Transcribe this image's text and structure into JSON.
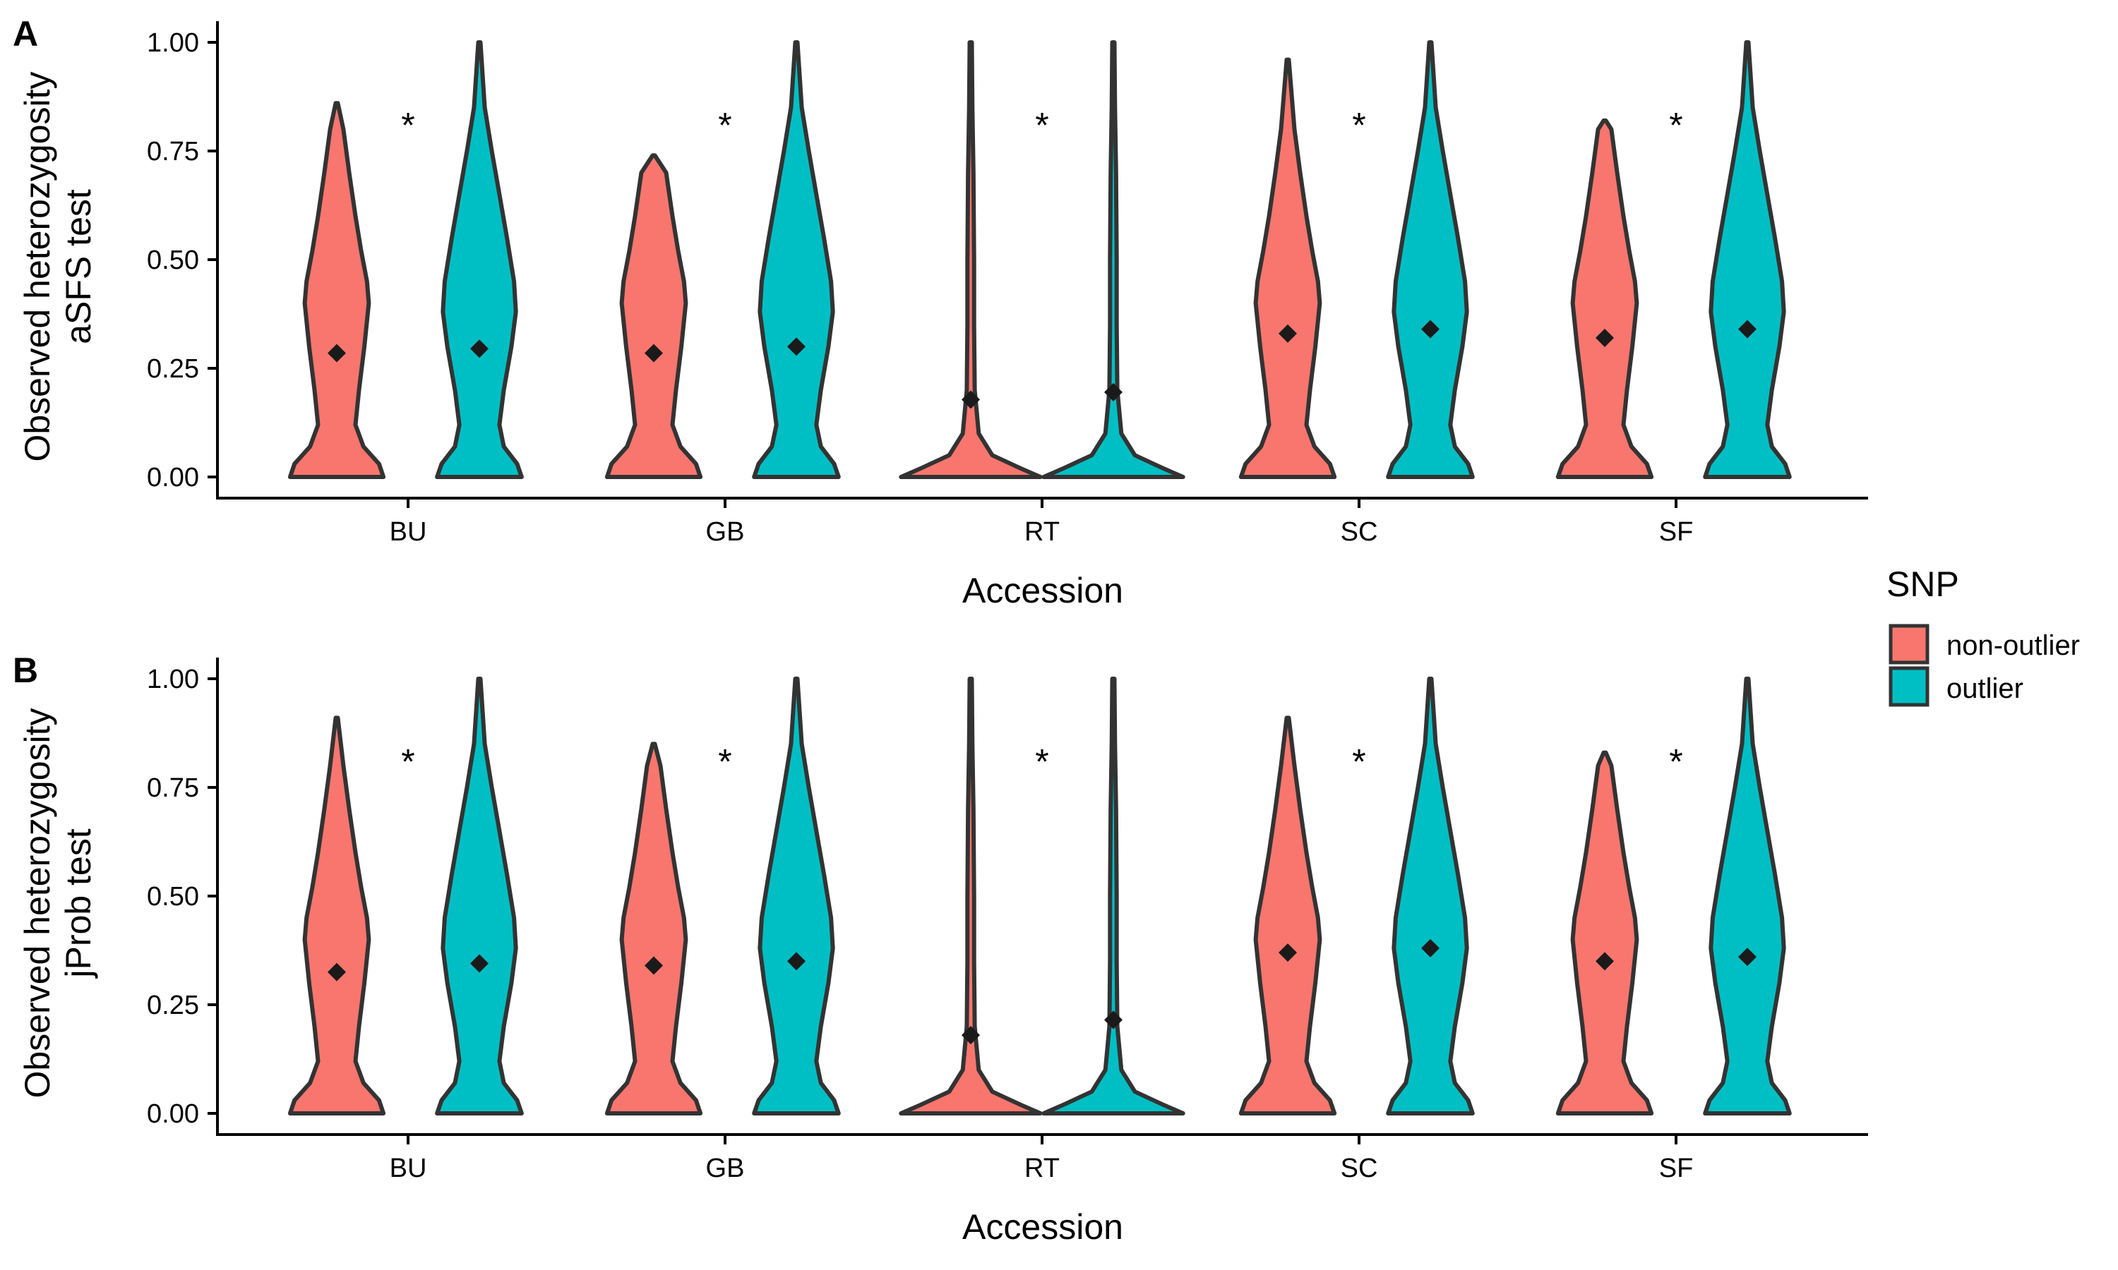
{
  "legend": {
    "title": "SNP",
    "items": [
      {
        "label": "non-outlier",
        "color": "#F8766D"
      },
      {
        "label": "outlier",
        "color": "#00BFC4"
      }
    ]
  },
  "chart_data": [
    {
      "type": "violin",
      "panel_tag": "A",
      "xlabel": "Accession",
      "ylabel_lines": [
        "Observed heterozygosity",
        "aSFS test"
      ],
      "ylim": [
        0,
        1
      ],
      "yticks": [
        0.0,
        0.25,
        0.5,
        0.75,
        1.0
      ],
      "ytick_labels": [
        "0.00",
        "0.25",
        "0.50",
        "0.75",
        "1.00"
      ],
      "categories": [
        "BU",
        "GB",
        "RT",
        "SC",
        "SF"
      ],
      "significance_marker": "*",
      "significance_y": 0.83,
      "series": [
        {
          "name": "non-outlier",
          "color": "#F8766D",
          "means": [
            0.285,
            0.285,
            0.178,
            0.33,
            0.32
          ],
          "max": [
            0.86,
            0.74,
            1.0,
            0.96,
            0.82
          ]
        },
        {
          "name": "outlier",
          "color": "#00BFC4",
          "means": [
            0.295,
            0.3,
            0.195,
            0.34,
            0.34
          ],
          "max": [
            1.0,
            1.0,
            1.0,
            1.0,
            1.0
          ]
        }
      ]
    },
    {
      "type": "violin",
      "panel_tag": "B",
      "xlabel": "Accession",
      "ylabel_lines": [
        "Observed heterozygosity",
        "jProb test"
      ],
      "ylim": [
        0,
        1
      ],
      "yticks": [
        0.0,
        0.25,
        0.5,
        0.75,
        1.0
      ],
      "ytick_labels": [
        "0.00",
        "0.25",
        "0.50",
        "0.75",
        "1.00"
      ],
      "categories": [
        "BU",
        "GB",
        "RT",
        "SC",
        "SF"
      ],
      "significance_marker": "*",
      "significance_y": 0.83,
      "series": [
        {
          "name": "non-outlier",
          "color": "#F8766D",
          "means": [
            0.325,
            0.34,
            0.18,
            0.37,
            0.35
          ],
          "max": [
            0.91,
            0.85,
            1.0,
            0.91,
            0.83
          ]
        },
        {
          "name": "outlier",
          "color": "#00BFC4",
          "means": [
            0.345,
            0.35,
            0.215,
            0.38,
            0.36
          ],
          "max": [
            1.0,
            1.0,
            1.0,
            1.0,
            1.0
          ]
        }
      ]
    }
  ]
}
